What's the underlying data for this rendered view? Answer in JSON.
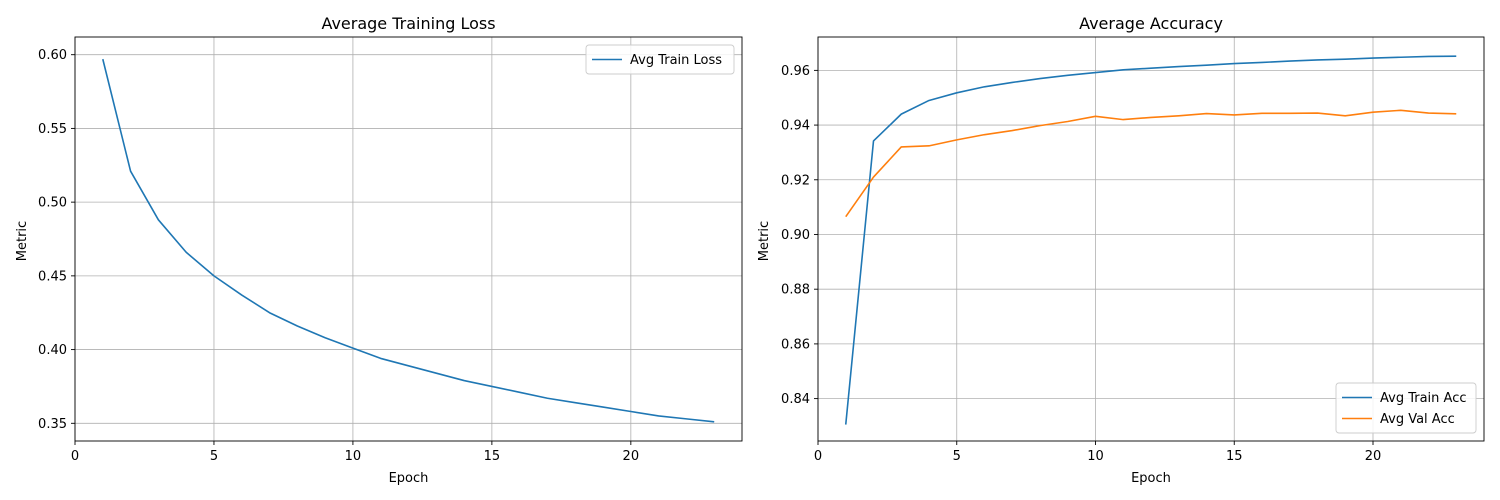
{
  "chart_data": [
    {
      "type": "line",
      "title": "Average Training Loss",
      "xlabel": "Epoch",
      "ylabel": "Metric",
      "xlim": [
        0,
        24
      ],
      "ylim": [
        0.338,
        0.612
      ],
      "xticks": [
        0,
        5,
        10,
        15,
        20
      ],
      "yticks": [
        0.35,
        0.4,
        0.45,
        0.5,
        0.55,
        0.6
      ],
      "ytick_labels": [
        "0.35",
        "0.40",
        "0.45",
        "0.50",
        "0.55",
        "0.60"
      ],
      "grid": true,
      "legend": "top-right",
      "x": [
        1,
        2,
        3,
        4,
        5,
        6,
        7,
        8,
        9,
        10,
        11,
        12,
        13,
        14,
        15,
        16,
        17,
        18,
        19,
        20,
        21,
        22,
        23
      ],
      "series": [
        {
          "name": "Avg Train Loss",
          "color": "#1f77b4",
          "values": [
            0.597,
            0.521,
            0.488,
            0.466,
            0.45,
            0.437,
            0.425,
            0.416,
            0.408,
            0.401,
            0.394,
            0.389,
            0.384,
            0.379,
            0.375,
            0.371,
            0.367,
            0.364,
            0.361,
            0.358,
            0.355,
            0.353,
            0.351
          ]
        }
      ]
    },
    {
      "type": "line",
      "title": "Average Accuracy",
      "xlabel": "Epoch",
      "ylabel": "Metric",
      "xlim": [
        0,
        24
      ],
      "ylim": [
        0.8245,
        0.9722
      ],
      "xticks": [
        0,
        5,
        10,
        15,
        20
      ],
      "yticks": [
        0.84,
        0.86,
        0.88,
        0.9,
        0.92,
        0.94,
        0.96
      ],
      "ytick_labels": [
        "0.84",
        "0.86",
        "0.88",
        "0.90",
        "0.92",
        "0.94",
        "0.96"
      ],
      "grid": true,
      "legend": "bottom-right",
      "x": [
        1,
        2,
        3,
        4,
        5,
        6,
        7,
        8,
        9,
        10,
        11,
        12,
        13,
        14,
        15,
        16,
        17,
        18,
        19,
        20,
        21,
        22,
        23
      ],
      "series": [
        {
          "name": "Avg Train Acc",
          "color": "#1f77b4",
          "values": [
            0.8305,
            0.9342,
            0.944,
            0.949,
            0.9518,
            0.954,
            0.9556,
            0.957,
            0.9582,
            0.9592,
            0.9602,
            0.9608,
            0.9614,
            0.9619,
            0.9625,
            0.9629,
            0.9634,
            0.9638,
            0.9641,
            0.9645,
            0.9648,
            0.9651,
            0.9652
          ]
        },
        {
          "name": "Avg Val Acc",
          "color": "#ff7f0e",
          "values": [
            0.9065,
            0.921,
            0.932,
            0.9324,
            0.9346,
            0.9365,
            0.938,
            0.9398,
            0.9413,
            0.9432,
            0.942,
            0.9428,
            0.9434,
            0.9442,
            0.9437,
            0.9443,
            0.9443,
            0.9444,
            0.9434,
            0.9447,
            0.9454,
            0.9444,
            0.9441
          ]
        }
      ]
    }
  ]
}
